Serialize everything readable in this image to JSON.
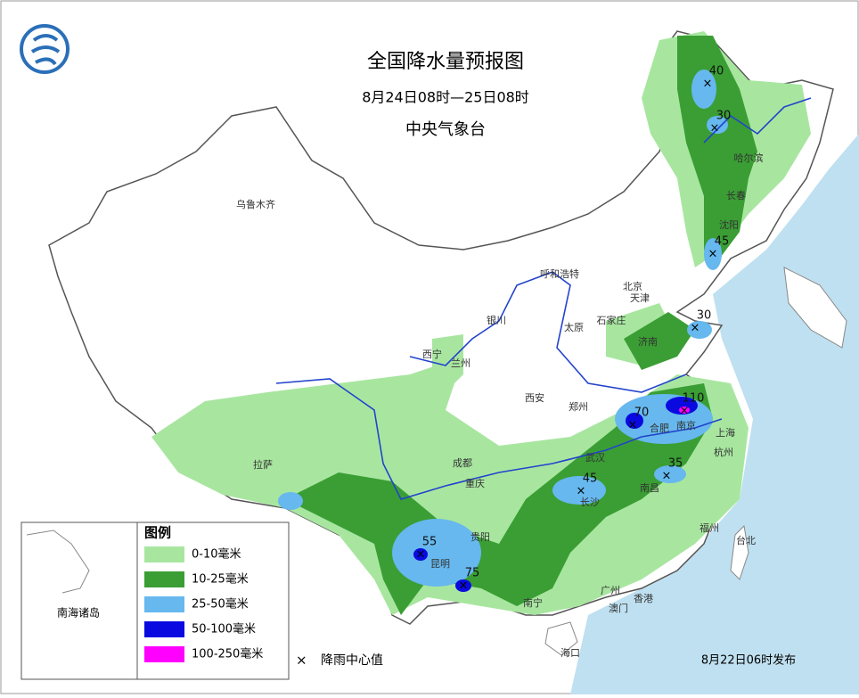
{
  "header": {
    "title": "全国降水量预报图",
    "subtitle": "8月24日08时—25日08时",
    "issuer": "中央气象台"
  },
  "legend": {
    "title": "图例",
    "items": [
      {
        "label": "0-10毫米",
        "color": "#a8e6a0"
      },
      {
        "label": "10-25毫米",
        "color": "#3a9e34"
      },
      {
        "label": "25-50毫米",
        "color": "#66b8ee"
      },
      {
        "label": "50-100毫米",
        "color": "#0a0ae0"
      },
      {
        "label": "100-250毫米",
        "color": "#ff00ff"
      }
    ],
    "center_label": "降雨中心值"
  },
  "inset_label": "南海诸岛",
  "issue_time": "8月22日06时发布",
  "cities": [
    "乌鲁木齐",
    "拉萨",
    "西宁",
    "兰州",
    "银川",
    "呼和浩特",
    "太原",
    "西安",
    "郑州",
    "石家庄",
    "北京",
    "天津",
    "济南",
    "沈阳",
    "长春",
    "哈尔滨",
    "成都",
    "重庆",
    "贵阳",
    "昆明",
    "南宁",
    "长沙",
    "武汉",
    "合肥",
    "南京",
    "上海",
    "杭州",
    "南昌",
    "福州",
    "台北",
    "广州",
    "香港",
    "澳门",
    "海口"
  ],
  "rain_centers": [
    {
      "value": 40
    },
    {
      "value": 30
    },
    {
      "value": 45
    },
    {
      "value": 30
    },
    {
      "value": 110
    },
    {
      "value": 70
    },
    {
      "value": 45
    },
    {
      "value": 35
    },
    {
      "value": 55
    },
    {
      "value": 75
    }
  ]
}
